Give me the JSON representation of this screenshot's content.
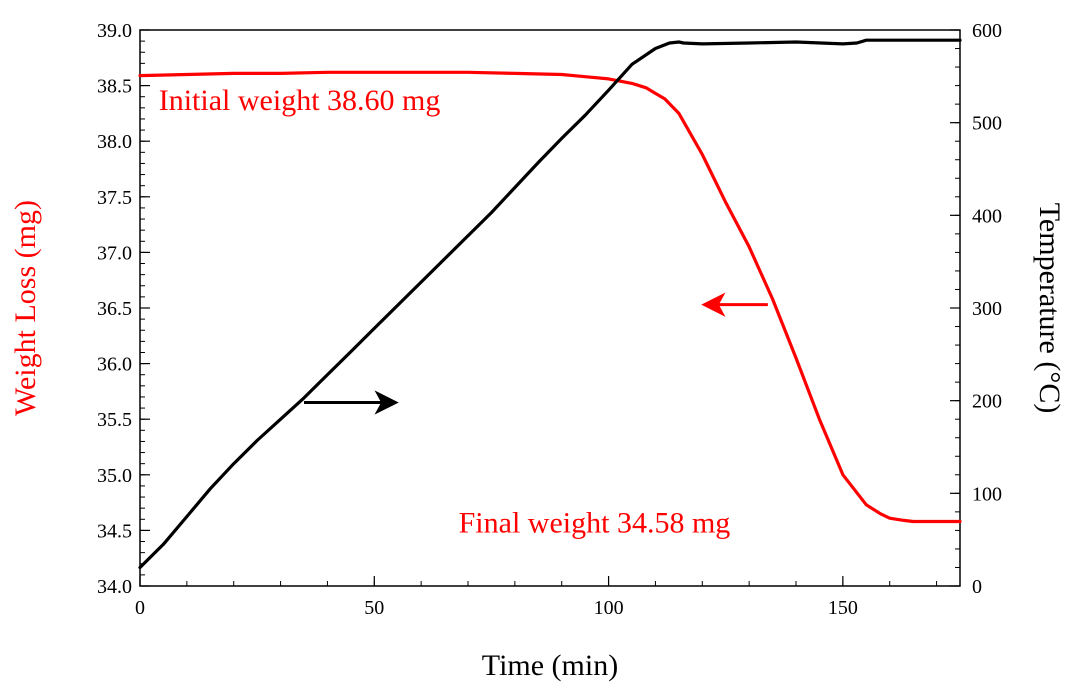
{
  "chart_data": {
    "type": "line",
    "title": "",
    "xlabel": "Time (min)",
    "ylabel_left": "Weight Loss (mg)",
    "ylabel_right": "Temperature (°C)",
    "xlim": [
      0,
      175
    ],
    "ylim_left": [
      34.0,
      39.0
    ],
    "ylim_right": [
      0,
      600
    ],
    "x_ticks": [
      "0",
      "50",
      "100",
      "150"
    ],
    "x_tick_values": [
      0,
      50,
      100,
      150
    ],
    "y_left_ticks": [
      "34.0",
      "34.5",
      "35.0",
      "35.5",
      "36.0",
      "36.5",
      "37.0",
      "37.5",
      "38.0",
      "38.5",
      "39.0"
    ],
    "y_left_tick_values": [
      34.0,
      34.5,
      35.0,
      35.5,
      36.0,
      36.5,
      37.0,
      37.5,
      38.0,
      38.5,
      39.0
    ],
    "y_right_ticks": [
      "0",
      "100",
      "200",
      "300",
      "400",
      "500",
      "600"
    ],
    "y_right_tick_values": [
      0,
      100,
      200,
      300,
      400,
      500,
      600
    ],
    "grid": false,
    "legend": "none",
    "series": [
      {
        "axis": "left",
        "color": "#ff0000",
        "x": [
          0,
          10,
          20,
          30,
          40,
          50,
          60,
          70,
          80,
          90,
          95,
          100,
          105,
          108,
          110,
          112,
          115,
          120,
          125,
          130,
          135,
          140,
          145,
          150,
          155,
          158,
          160,
          163,
          165,
          170,
          175
        ],
        "values": [
          38.59,
          38.6,
          38.61,
          38.61,
          38.62,
          38.62,
          38.62,
          38.62,
          38.61,
          38.6,
          38.58,
          38.56,
          38.52,
          38.48,
          38.43,
          38.38,
          38.25,
          37.88,
          37.45,
          37.05,
          36.58,
          36.05,
          35.5,
          35.0,
          34.73,
          34.65,
          34.61,
          34.59,
          34.58,
          34.58,
          34.58
        ]
      },
      {
        "axis": "right",
        "color": "#000000",
        "x": [
          0,
          5,
          10,
          15,
          20,
          25,
          30,
          35,
          40,
          45,
          50,
          55,
          60,
          65,
          70,
          75,
          80,
          85,
          90,
          95,
          100,
          105,
          110,
          113,
          115,
          116,
          120,
          130,
          140,
          150,
          153,
          155,
          160,
          170,
          175
        ],
        "values": [
          20,
          45,
          75,
          105,
          132,
          157,
          180,
          203,
          228,
          253,
          278,
          303,
          328,
          353,
          378,
          403,
          430,
          457,
          483,
          508,
          535,
          563,
          580,
          586,
          587,
          586,
          585,
          586,
          587,
          585,
          586,
          589,
          589,
          589,
          589
        ]
      }
    ],
    "annotations": [
      {
        "text": "Initial weight 38.60 mg",
        "color": "#ff0000",
        "x": 4,
        "y_left": 38.28
      },
      {
        "text": "Final weight 34.58 mg",
        "color": "#ff0000",
        "x": 68,
        "y_left": 34.48
      }
    ],
    "arrows": [
      {
        "color": "#ff0000",
        "direction": "left",
        "x_from": 134,
        "x_to": 120,
        "y_left": 36.53
      },
      {
        "color": "#000000",
        "direction": "right",
        "x_from": 35,
        "x_to": 55,
        "y_left": 35.65
      }
    ]
  }
}
